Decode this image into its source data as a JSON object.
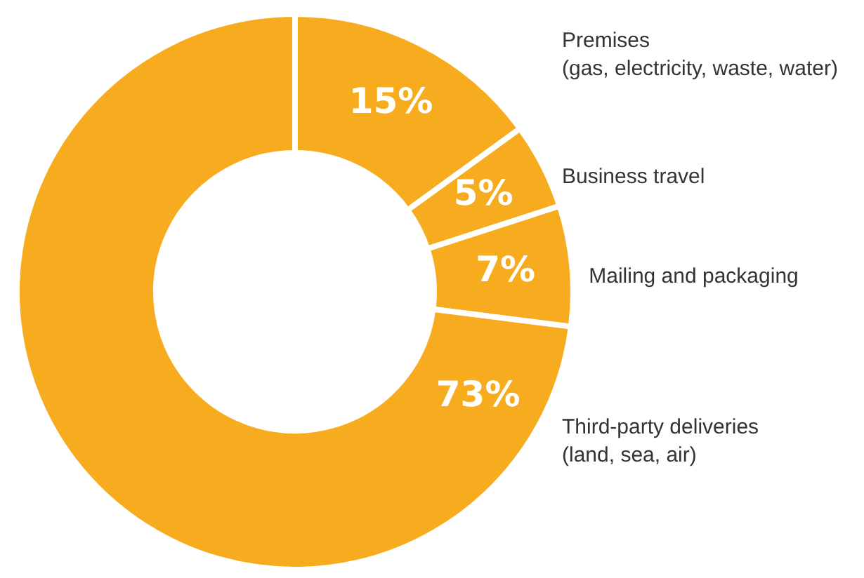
{
  "chart_data": {
    "type": "donut",
    "categories": [
      "Premises (gas, electricity, waste, water)",
      "Business travel",
      "Mailing and packaging",
      "Third-party deliveries (land, sea, air)"
    ],
    "values": [
      15,
      5,
      7,
      73
    ],
    "colors": [
      "#f7ab1e",
      "#f7ab1e",
      "#f7ab1e",
      "#f7ab1e"
    ],
    "value_labels": [
      "15%",
      "5%",
      "7%",
      "73%"
    ],
    "legend": false
  }
}
